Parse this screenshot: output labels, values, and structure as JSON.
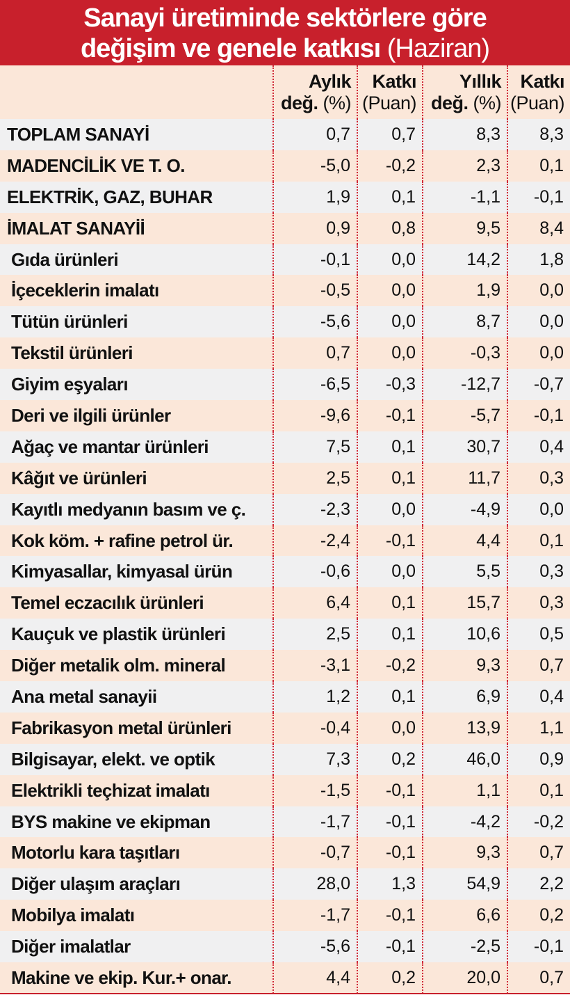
{
  "title": {
    "line1": "Sanayi üretiminde sektörlere göre",
    "line2": "değişim ve genele katkısı",
    "line2_suffix": "(Haziran)"
  },
  "columns": [
    {
      "top": "Aylık",
      "bottom_bold": "değ.",
      "bottom": "(%)"
    },
    {
      "top": "Katkı",
      "bottom_bold": "",
      "bottom": "(Puan)"
    },
    {
      "top": "Yıllık",
      "bottom_bold": "değ.",
      "bottom": "(%)"
    },
    {
      "top": "Katkı",
      "bottom_bold": "",
      "bottom": "(Puan)"
    }
  ],
  "rows": [
    {
      "name": "TOPLAM SANAYİ",
      "main": true,
      "vals": [
        "0,7",
        "0,7",
        "8,3",
        "8,3"
      ]
    },
    {
      "name": "MADENCİLİK VE T. O.",
      "main": true,
      "vals": [
        "-5,0",
        "-0,2",
        "2,3",
        "0,1"
      ]
    },
    {
      "name": "ELEKTRİK, GAZ, BUHAR",
      "main": true,
      "vals": [
        "1,9",
        "0,1",
        "-1,1",
        "-0,1"
      ]
    },
    {
      "name": "İMALAT SANAYİİ",
      "main": true,
      "vals": [
        "0,9",
        "0,8",
        "9,5",
        "8,4"
      ]
    },
    {
      "name": "Gıda ürünleri",
      "main": false,
      "vals": [
        "-0,1",
        "0,0",
        "14,2",
        "1,8"
      ]
    },
    {
      "name": "İçeceklerin imalatı",
      "main": false,
      "vals": [
        "-0,5",
        "0,0",
        "1,9",
        "0,0"
      ]
    },
    {
      "name": "Tütün ürünleri",
      "main": false,
      "vals": [
        "-5,6",
        "0,0",
        "8,7",
        "0,0"
      ]
    },
    {
      "name": "Tekstil ürünleri",
      "main": false,
      "vals": [
        "0,7",
        "0,0",
        "-0,3",
        "0,0"
      ]
    },
    {
      "name": "Giyim eşyaları",
      "main": false,
      "vals": [
        "-6,5",
        "-0,3",
        "-12,7",
        "-0,7"
      ]
    },
    {
      "name": "Deri ve ilgili ürünler",
      "main": false,
      "vals": [
        "-9,6",
        "-0,1",
        "-5,7",
        "-0,1"
      ]
    },
    {
      "name": "Ağaç ve mantar ürünleri",
      "main": false,
      "vals": [
        "7,5",
        "0,1",
        "30,7",
        "0,4"
      ]
    },
    {
      "name": "Kâğıt ve ürünleri",
      "main": false,
      "vals": [
        "2,5",
        "0,1",
        "11,7",
        "0,3"
      ]
    },
    {
      "name": "Kayıtlı medyanın basım ve ç.",
      "main": false,
      "vals": [
        "-2,3",
        "0,0",
        "-4,9",
        "0,0"
      ]
    },
    {
      "name": "Kok köm. + rafine petrol ür.",
      "main": false,
      "vals": [
        "-2,4",
        "-0,1",
        "4,4",
        "0,1"
      ]
    },
    {
      "name": "Kimyasallar, kimyasal ürün",
      "main": false,
      "vals": [
        "-0,6",
        "0,0",
        "5,5",
        "0,3"
      ]
    },
    {
      "name": "Temel eczacılık ürünleri",
      "main": false,
      "vals": [
        "6,4",
        "0,1",
        "15,7",
        "0,3"
      ]
    },
    {
      "name": "Kauçuk ve plastik ürünleri",
      "main": false,
      "vals": [
        "2,5",
        "0,1",
        "10,6",
        "0,5"
      ]
    },
    {
      "name": "Diğer metalik olm. mineral",
      "main": false,
      "vals": [
        "-3,1",
        "-0,2",
        "9,3",
        "0,7"
      ]
    },
    {
      "name": "Ana metal sanayii",
      "main": false,
      "vals": [
        "1,2",
        "0,1",
        "6,9",
        "0,4"
      ]
    },
    {
      "name": "Fabrikasyon metal ürünleri",
      "main": false,
      "vals": [
        "-0,4",
        "0,0",
        "13,9",
        "1,1"
      ]
    },
    {
      "name": "Bilgisayar, elekt. ve optik",
      "main": false,
      "vals": [
        "7,3",
        "0,2",
        "46,0",
        "0,9"
      ]
    },
    {
      "name": "Elektrikli teçhizat imalatı",
      "main": false,
      "vals": [
        "-1,5",
        "-0,1",
        "1,1",
        "0,1"
      ]
    },
    {
      "name": "BYS makine ve ekipman",
      "main": false,
      "vals": [
        "-1,7",
        "-0,1",
        "-4,2",
        "-0,2"
      ]
    },
    {
      "name": "Motorlu kara taşıtları",
      "main": false,
      "vals": [
        "-0,7",
        "-0,1",
        "9,3",
        "0,7"
      ]
    },
    {
      "name": "Diğer ulaşım araçları",
      "main": false,
      "vals": [
        "28,0",
        "1,3",
        "54,9",
        "2,2"
      ]
    },
    {
      "name": "Mobilya imalatı",
      "main": false,
      "vals": [
        "-1,7",
        "-0,1",
        "6,6",
        "0,2"
      ]
    },
    {
      "name": "Diğer imalatlar",
      "main": false,
      "vals": [
        "-5,6",
        "-0,1",
        "-2,5",
        "-0,1"
      ]
    },
    {
      "name": "Makine ve ekip. Kur.+ onar.",
      "main": false,
      "vals": [
        "4,4",
        "0,2",
        "20,0",
        "0,7"
      ]
    }
  ]
}
